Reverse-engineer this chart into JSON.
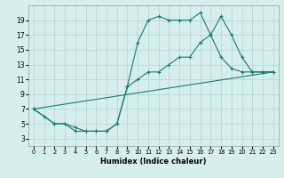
{
  "xlabel": "Humidex (Indice chaleur)",
  "background_color": "#d6efed",
  "grid_color": "#aed4d0",
  "line_color": "#1a7a6e",
  "xlim": [
    -0.5,
    23.5
  ],
  "ylim": [
    2.0,
    21.0
  ],
  "xticks": [
    0,
    1,
    2,
    3,
    4,
    5,
    6,
    7,
    8,
    9,
    10,
    11,
    12,
    13,
    14,
    15,
    16,
    17,
    18,
    19,
    20,
    21,
    22,
    23
  ],
  "yticks": [
    3,
    5,
    7,
    9,
    11,
    13,
    15,
    17,
    19
  ],
  "series1_x": [
    0,
    1,
    2,
    3,
    4,
    5,
    6,
    7,
    8,
    9,
    10,
    11,
    12,
    13,
    14,
    15,
    16,
    17,
    18,
    19,
    20,
    21,
    22,
    23
  ],
  "series1_y": [
    7,
    6,
    5,
    5,
    4,
    4,
    4,
    4,
    5,
    10,
    16,
    19,
    19.5,
    19,
    19,
    19,
    20,
    17,
    19.5,
    17,
    14,
    12,
    12,
    12
  ],
  "series2_x": [
    0,
    2,
    3,
    4,
    5,
    6,
    7,
    8,
    9,
    10,
    11,
    12,
    13,
    14,
    15,
    16,
    17,
    18,
    19,
    20,
    21,
    22,
    23
  ],
  "series2_y": [
    7,
    5,
    5,
    4.5,
    4,
    4,
    4,
    5,
    10,
    11,
    12,
    12,
    13,
    14,
    14,
    16,
    17,
    14,
    12.5,
    12,
    12,
    12,
    12
  ],
  "series3_x": [
    0,
    23
  ],
  "series3_y": [
    7,
    12
  ]
}
